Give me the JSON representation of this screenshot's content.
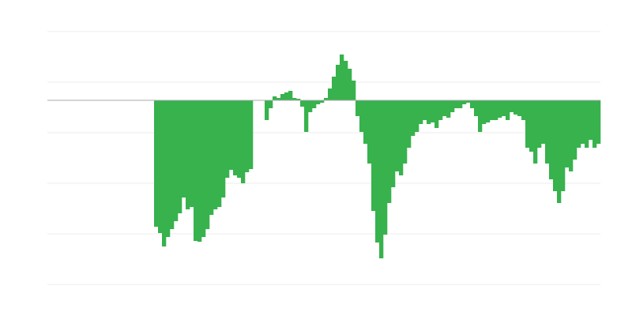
{
  "chart_data": {
    "type": "bar",
    "color": "#37b24d",
    "grid": true,
    "ylim": [
      -233,
      87
    ],
    "yticks": [
      -233,
      -169,
      -105,
      -41,
      23,
      87
    ],
    "values": [
      null,
      null,
      null,
      null,
      null,
      null,
      null,
      null,
      null,
      null,
      null,
      null,
      null,
      null,
      null,
      null,
      null,
      null,
      null,
      null,
      null,
      null,
      null,
      null,
      null,
      null,
      null,
      -160,
      -168,
      -185,
      -173,
      -163,
      -153,
      -143,
      -123,
      -138,
      -135,
      -178,
      -179,
      -173,
      -163,
      -145,
      -138,
      -135,
      -123,
      -98,
      -88,
      -95,
      -98,
      -105,
      -91,
      -87,
      null,
      null,
      null,
      -25,
      -10,
      5,
      3,
      8,
      10,
      12,
      3,
      2,
      -8,
      -40,
      -15,
      -10,
      -5,
      -3,
      3,
      15,
      30,
      45,
      58,
      50,
      40,
      25,
      -20,
      -40,
      -55,
      -80,
      -140,
      -180,
      -200,
      -170,
      -130,
      -110,
      -90,
      -95,
      -80,
      -60,
      -45,
      -40,
      -30,
      -25,
      -30,
      -28,
      -35,
      -25,
      -20,
      -22,
      -15,
      -10,
      -10,
      -5,
      -3,
      -10,
      -20,
      -40,
      -30,
      -28,
      -25,
      -25,
      -22,
      -20,
      -25,
      -15,
      -18,
      -20,
      -25,
      -60,
      -65,
      -80,
      -60,
      -55,
      -80,
      -100,
      -115,
      -130,
      -115,
      -85,
      -90,
      -75,
      -60,
      -55,
      -60,
      -50,
      -60,
      -55
    ]
  }
}
